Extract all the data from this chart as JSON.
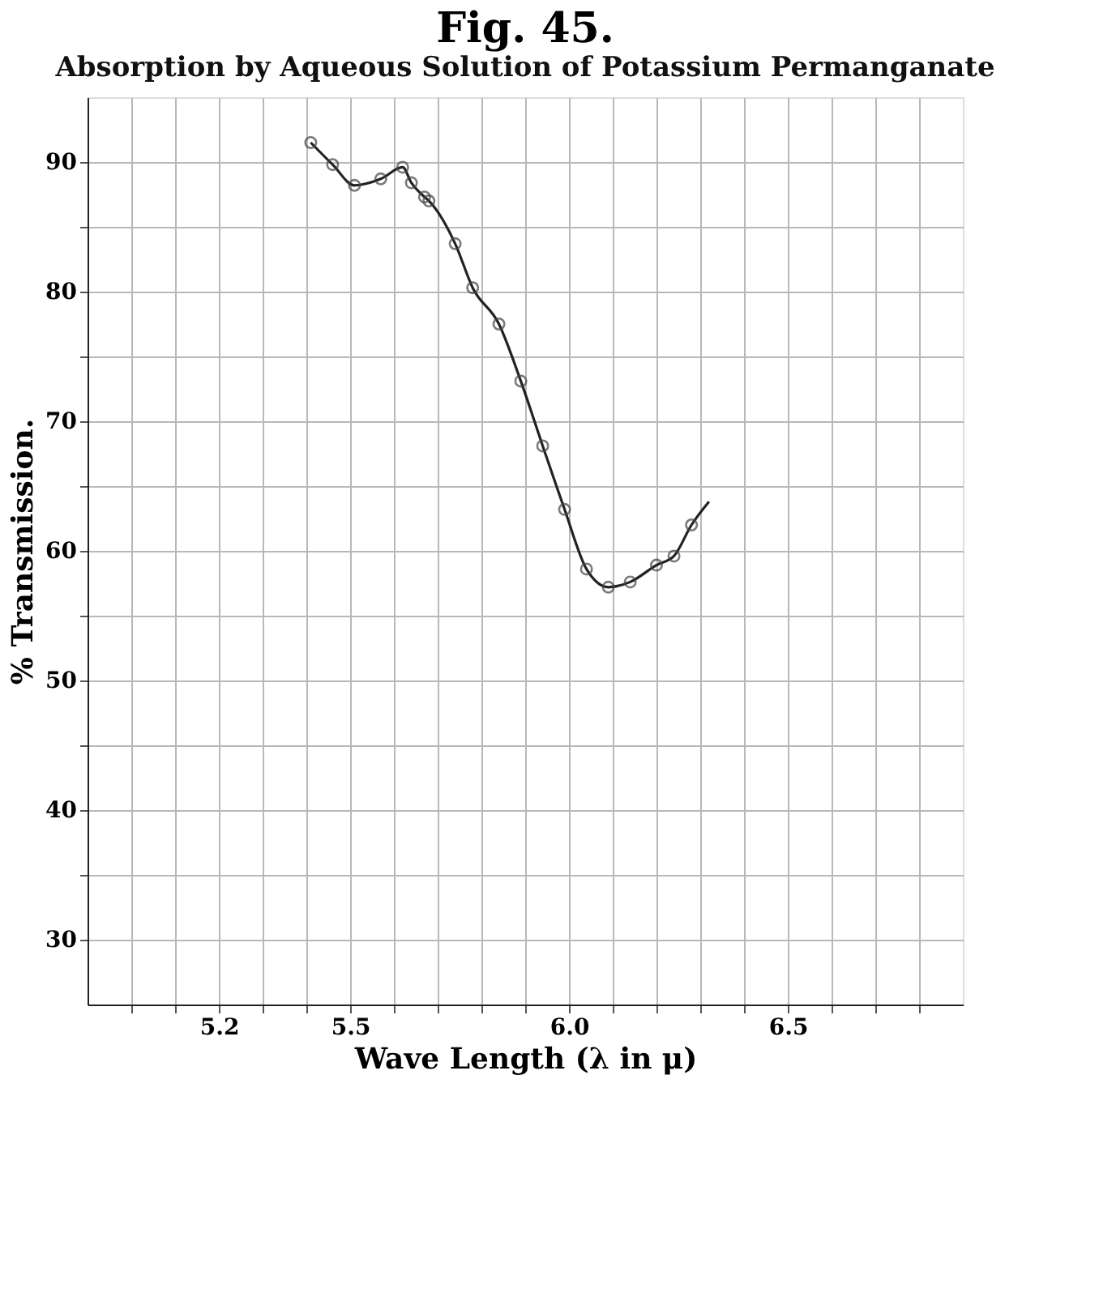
{
  "chart_data": {
    "type": "line",
    "title": "Fig. 45.",
    "subtitle": "Absorption by Aqueous Solution of Potassium Permanganate",
    "xlabel": "Wave Length (λ in μ)",
    "ylabel": "% Transmission.",
    "xlim": [
      4.9,
      6.9
    ],
    "ylim": [
      25,
      95
    ],
    "xticks": [
      {
        "value": 5.0,
        "label": null
      },
      {
        "value": 5.1,
        "label": null
      },
      5.2,
      {
        "value": 5.3,
        "label": null
      },
      {
        "value": 5.4,
        "label": null
      },
      5.5,
      {
        "value": 5.6,
        "label": null
      },
      {
        "value": 5.7,
        "label": null
      },
      {
        "value": 5.8,
        "label": null
      },
      {
        "value": 5.9,
        "label": null
      },
      {
        "value": 6.0,
        "label": "6.0"
      },
      {
        "value": 6.1,
        "label": null
      },
      {
        "value": 6.2,
        "label": null
      },
      {
        "value": 6.3,
        "label": null
      },
      {
        "value": 6.4,
        "label": null
      },
      6.5,
      {
        "value": 6.6,
        "label": null
      },
      {
        "value": 6.7,
        "label": null
      },
      {
        "value": 6.8,
        "label": null
      }
    ],
    "yticks": [
      30,
      {
        "value": 35,
        "label": null
      },
      40,
      {
        "value": 45,
        "label": null
      },
      50,
      {
        "value": 55,
        "label": null
      },
      60,
      {
        "value": 65,
        "label": null
      },
      70,
      {
        "value": 75,
        "label": null
      },
      80,
      {
        "value": 85,
        "label": null
      },
      90
    ],
    "grid": true,
    "series": [
      {
        "type": "line",
        "color": "#222222",
        "marker": "none",
        "x": [
          5.41,
          5.46,
          5.51,
          5.57,
          5.62,
          5.64,
          5.67,
          5.68,
          5.74,
          5.78,
          5.84,
          5.89,
          5.94,
          5.99,
          6.04,
          6.09,
          6.14,
          6.2,
          6.24,
          6.28,
          6.32
        ],
        "values": [
          91.5,
          89.8,
          88.2,
          88.7,
          89.6,
          88.4,
          87.3,
          87.0,
          83.7,
          80.3,
          77.5,
          73.1,
          68.1,
          63.2,
          58.6,
          57.2,
          57.6,
          58.9,
          59.6,
          62.0,
          63.8
        ]
      },
      {
        "type": "scatter",
        "color": "#444444",
        "marker": "circle",
        "x": [
          5.41,
          5.46,
          5.51,
          5.57,
          5.62,
          5.64,
          5.67,
          5.68,
          5.74,
          5.78,
          5.84,
          5.89,
          5.94,
          5.99,
          6.04,
          6.09,
          6.14,
          6.2,
          6.24,
          6.28
        ],
        "values": [
          91.5,
          89.8,
          88.2,
          88.7,
          89.6,
          88.4,
          87.3,
          87.0,
          83.7,
          80.3,
          77.5,
          73.1,
          68.1,
          63.2,
          58.6,
          57.2,
          57.6,
          58.9,
          59.6,
          62.0
        ]
      }
    ]
  }
}
